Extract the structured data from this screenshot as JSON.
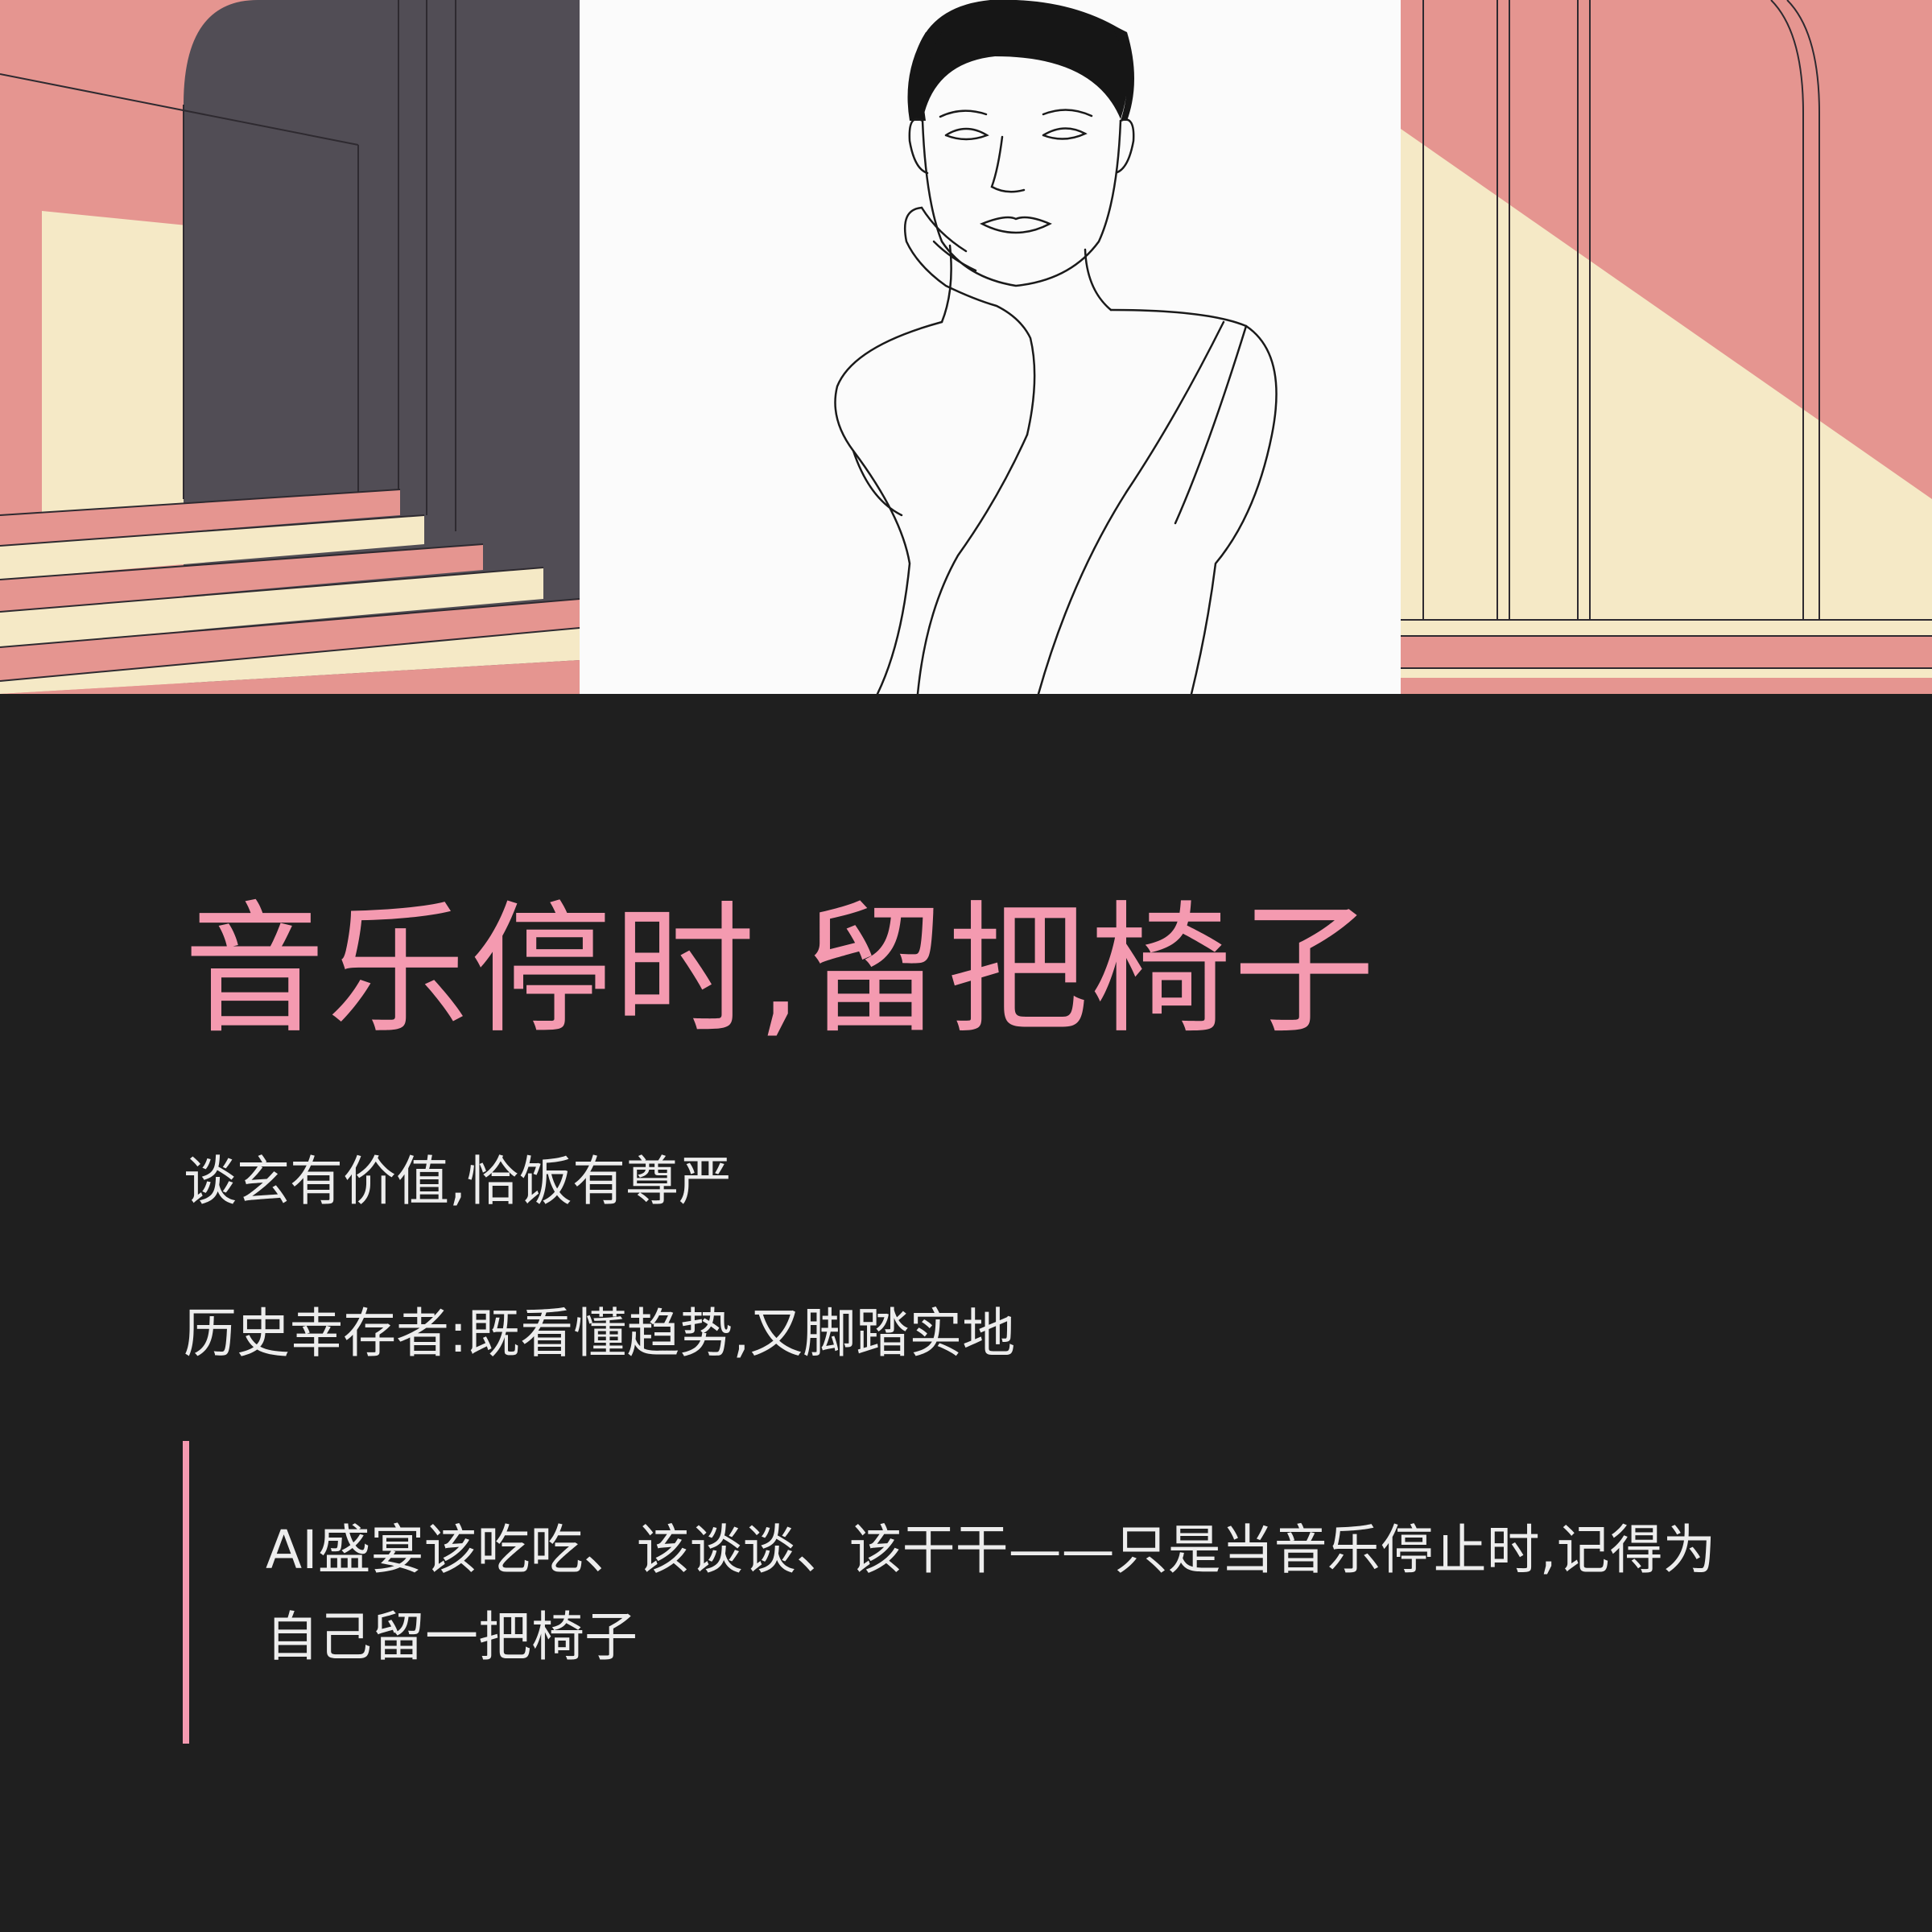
{
  "colors": {
    "background": "#1f1f1f",
    "accent_pink": "#f49ab0",
    "text_light": "#ededed",
    "salmon": "#e59590",
    "charcoal": "#514d55",
    "cream": "#f5e9c6"
  },
  "hero": {
    "left_panel": "architectural-stairs-illustration",
    "center_panel": "woman-line-portrait-illustration",
    "right_panel": "architectural-columns-illustration"
  },
  "title": "音乐停时,留把椅子",
  "subtitles": [
    "谈玄有价值,恰饭有尊严",
    "历史幸存者:既看懂趋势,又脚踏实地"
  ],
  "quote": {
    "text": "AI盛宴该吃吃、该谈谈、该干干——只是当音乐停止时,记得为自己留一把椅子"
  }
}
